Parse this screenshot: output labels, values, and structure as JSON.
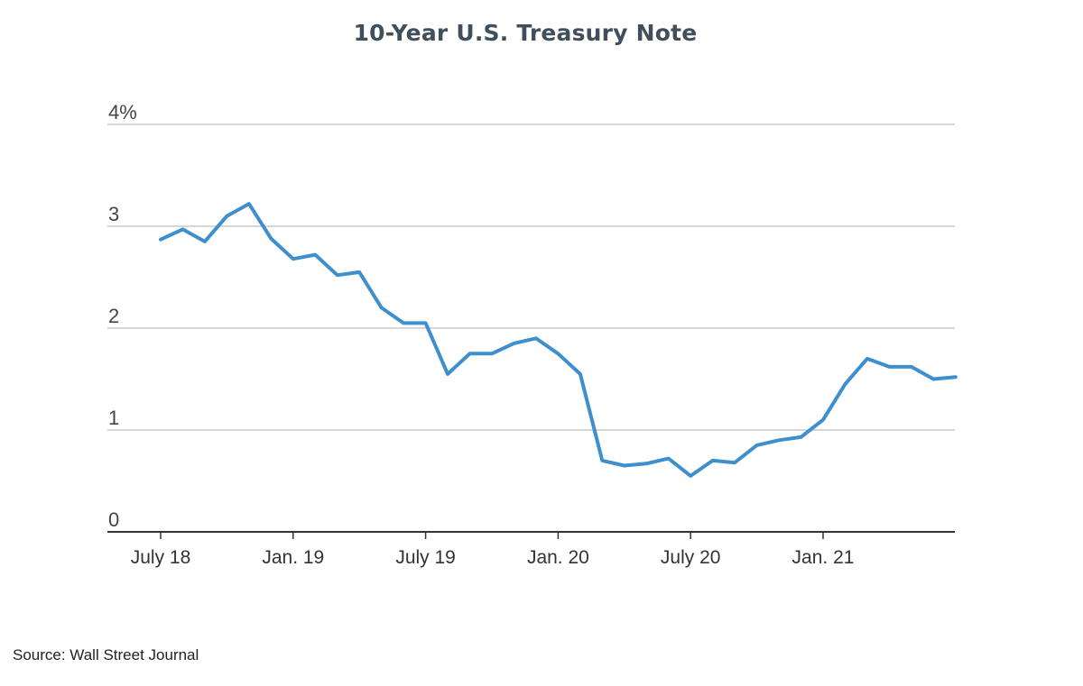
{
  "chart_data": {
    "type": "line",
    "title": "10-Year U.S. Treasury Note",
    "ylim": [
      0,
      4
    ],
    "y_ticks": [
      "0",
      "1",
      "2",
      "3",
      "4%"
    ],
    "x_ticks": [
      "July 18",
      "Jan. 19",
      "July 19",
      "Jan. 20",
      "July 20",
      "Jan. 21"
    ],
    "grid": true,
    "series": [
      {
        "color": "#3d8fce",
        "points": [
          [
            "July 18",
            2.87
          ],
          [
            "Aug. 18",
            2.97
          ],
          [
            "Sep. 18",
            2.85
          ],
          [
            "Oct. 18",
            3.1
          ],
          [
            "Nov. 18",
            3.22
          ],
          [
            "Dec. 18",
            2.88
          ],
          [
            "Jan. 19",
            2.68
          ],
          [
            "Feb. 19",
            2.72
          ],
          [
            "Mar. 19",
            2.52
          ],
          [
            "Apr. 19",
            2.55
          ],
          [
            "May 19",
            2.2
          ],
          [
            "June 19",
            2.05
          ],
          [
            "July 19",
            2.05
          ],
          [
            "Aug. 19",
            1.55
          ],
          [
            "Sep. 19",
            1.75
          ],
          [
            "Oct. 19",
            1.75
          ],
          [
            "Nov. 19",
            1.85
          ],
          [
            "Dec. 19",
            1.9
          ],
          [
            "Jan. 20",
            1.75
          ],
          [
            "Feb. 20",
            1.55
          ],
          [
            "Mar. 20",
            0.7
          ],
          [
            "Apr. 20",
            0.65
          ],
          [
            "May 20",
            0.67
          ],
          [
            "June 20",
            0.72
          ],
          [
            "July 20",
            0.55
          ],
          [
            "Aug. 20",
            0.7
          ],
          [
            "Sep. 20",
            0.68
          ],
          [
            "Oct. 20",
            0.85
          ],
          [
            "Nov. 20",
            0.9
          ],
          [
            "Dec. 20",
            0.93
          ],
          [
            "Jan. 21",
            1.1
          ],
          [
            "Feb. 21",
            1.45
          ],
          [
            "Mar. 21",
            1.7
          ],
          [
            "Apr. 21",
            1.62
          ],
          [
            "May 21",
            1.62
          ],
          [
            "June 21",
            1.5
          ],
          [
            "July 21",
            1.52
          ]
        ]
      }
    ]
  },
  "source": "Source: Wall Street Journal"
}
